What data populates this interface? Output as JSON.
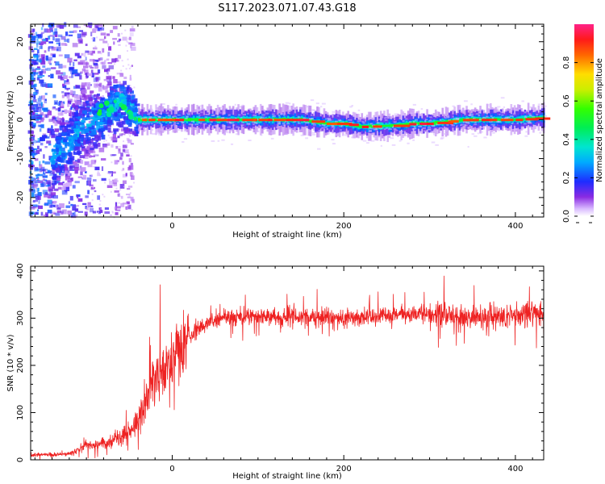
{
  "title": "S117.2023.071.07.43.G18",
  "colors": {
    "snr_line": "#ee2222",
    "frame": "#000000",
    "background": "#ffffff"
  },
  "chart_data": [
    {
      "type": "heatmap",
      "xlabel": "Height of straight line (km)",
      "ylabel": "Frequency (Hz)",
      "xlim": [
        -165,
        433
      ],
      "ylim": [
        -25,
        24.5
      ],
      "x_ticks": [
        0,
        200,
        400
      ],
      "x_tick_labels": [
        "0",
        "200",
        "400"
      ],
      "y_ticks": [
        20,
        10,
        0,
        -10,
        -20
      ],
      "y_tick_labels": [
        "20",
        "10",
        "0",
        "-10",
        "-20"
      ],
      "colorbar": {
        "label": "Normalized spectral amplitude",
        "range": [
          0,
          1
        ],
        "ticks": [
          0.0,
          0.2,
          0.4,
          0.6,
          0.8
        ],
        "tick_labels": [
          "0.0",
          "0.2",
          "0.4",
          "0.6",
          "0.8"
        ],
        "colormap": "gist_ncar_like"
      },
      "ridge": {
        "description_points_km_hz": [
          [
            -50,
            4
          ],
          [
            -40,
            0
          ],
          [
            0,
            0
          ],
          [
            100,
            0
          ],
          [
            150,
            0
          ],
          [
            180,
            -1
          ],
          [
            200,
            -1
          ],
          [
            220,
            -1.8
          ],
          [
            260,
            -1.5
          ],
          [
            280,
            -1
          ],
          [
            300,
            -1
          ],
          [
            340,
            0
          ],
          [
            400,
            0
          ],
          [
            433,
            0.5
          ]
        ]
      }
    },
    {
      "type": "line",
      "xlabel": "Height of straight line (km)",
      "ylabel": "SNR (10 * v/v)",
      "xlim": [
        -165,
        433
      ],
      "ylim": [
        0,
        410
      ],
      "x_ticks": [
        0,
        200,
        400
      ],
      "x_tick_labels": [
        "0",
        "200",
        "400"
      ],
      "y_ticks": [
        0,
        100,
        200,
        300,
        400
      ],
      "y_tick_labels": [
        "0",
        "100",
        "200",
        "300",
        "400"
      ],
      "series": [
        {
          "trend_km_snr": [
            [
              -165,
              10
            ],
            [
              -120,
              12
            ],
            [
              -100,
              30
            ],
            [
              -80,
              35
            ],
            [
              -60,
              45
            ],
            [
              -40,
              80
            ],
            [
              -25,
              150
            ],
            [
              -15,
              190
            ],
            [
              0,
              200
            ],
            [
              10,
              230
            ],
            [
              20,
              260
            ],
            [
              40,
              290
            ],
            [
              60,
              300
            ],
            [
              100,
              305
            ],
            [
              200,
              300
            ],
            [
              300,
              310
            ],
            [
              350,
              300
            ],
            [
              400,
              305
            ],
            [
              433,
              310
            ]
          ]
        }
      ]
    }
  ]
}
